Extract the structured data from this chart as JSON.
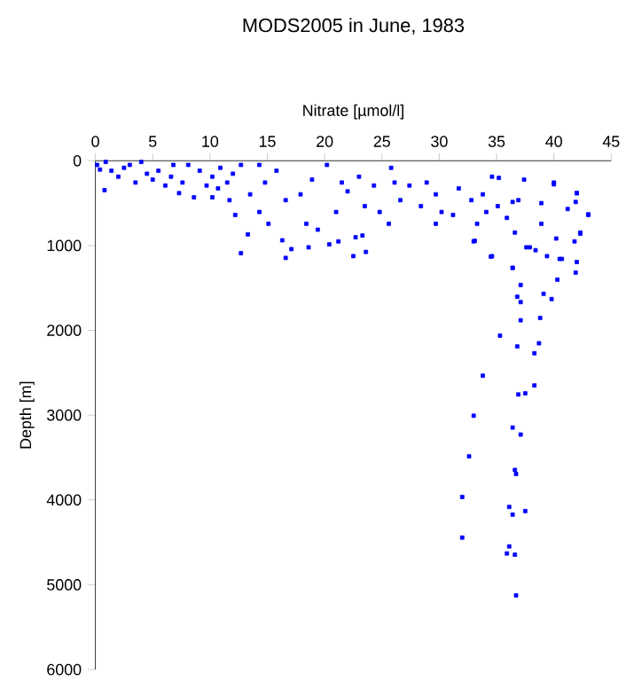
{
  "chart_data": {
    "type": "scatter",
    "title": "MODS2005 in June, 1983",
    "xlabel": "Nitrate [µmol/l]",
    "ylabel": "Depth [m]",
    "xlim": [
      0,
      45
    ],
    "ylim": [
      6000,
      0
    ],
    "xticks": [
      0,
      5,
      10,
      15,
      20,
      25,
      30,
      35,
      40,
      45
    ],
    "yticks": [
      0,
      1000,
      2000,
      3000,
      4000,
      5000,
      6000
    ],
    "marker": "square",
    "grid": false,
    "series": [
      {
        "color": "#0000ff",
        "x": [
          35.3,
          36.8,
          38.3,
          33.8,
          38.3,
          36.9,
          37.5,
          33.0,
          36.4,
          37.1,
          32.6,
          36.6,
          36.7,
          32.0,
          36.1,
          36.4,
          37.5,
          32.0,
          36.1,
          35.9,
          36.6,
          36.7,
          40.0,
          42.0,
          41.9,
          43.0,
          42.3,
          42.0,
          41.9,
          40.3,
          39.1,
          39.8,
          37.1,
          36.8,
          37.1,
          38.8,
          37.1,
          38.7,
          36.4,
          34.5,
          33.1,
          23.6,
          22.7,
          36.4,
          38.9,
          37.9,
          39.4,
          40.5,
          35.2,
          0.15,
          0.9,
          0.8,
          3.0,
          4.0,
          3.5,
          5.5,
          7.3,
          8.6,
          8.1,
          10.2,
          10.2,
          11.5,
          12.7,
          12.7,
          12.2,
          11.7,
          13.3,
          14.3,
          13.5,
          14.8,
          14.3,
          15.8,
          16.6,
          17.1,
          16.6,
          16.3,
          15.1,
          18.4,
          18.6,
          19.4,
          17.9,
          18.9,
          20.2,
          20.4,
          21.0,
          21.5,
          21.2,
          22.5,
          22.0,
          23.5,
          23.0,
          23.3,
          24.3,
          24.8,
          25.6,
          25.8,
          26.1,
          26.6,
          27.4,
          28.4,
          28.9,
          29.7,
          30.2,
          29.7,
          31.7,
          32.8,
          33.3,
          33.8,
          34.6,
          35.1,
          33.0,
          34.6,
          35.9,
          36.6,
          36.4,
          37.4,
          37.6,
          38.4,
          38.9,
          40.0,
          40.2,
          40.7,
          41.2,
          41.8,
          42.0,
          42.3,
          43.0,
          36.9,
          34.1,
          31.2,
          1.4,
          2.0,
          4.5,
          5.0,
          6.6,
          6.8,
          9.1,
          9.7,
          10.9,
          12.0,
          10.7,
          7.6,
          6.1,
          0.4,
          2.5
        ],
        "values": [
          2063,
          2190,
          2270,
          2535,
          2650,
          2756,
          2743,
          3007,
          3146,
          3229,
          3486,
          3646,
          3694,
          3965,
          4083,
          4173,
          4131,
          4444,
          4548,
          4631,
          4646,
          5125,
          278,
          382,
          486,
          632,
          861,
          1194,
          1319,
          1402,
          1569,
          1631,
          1465,
          1604,
          1667,
          1854,
          1881,
          2152,
          1263,
          1131,
          944,
          1075,
          902,
          486,
          500,
          1021,
          1125,
          1158,
          202,
          49,
          14,
          347,
          49,
          14,
          257,
          118,
          382,
          431,
          49,
          431,
          188,
          257,
          49,
          1090,
          639,
          465,
          868,
          604,
          396,
          257,
          49,
          118,
          465,
          1042,
          1146,
          938,
          743,
          743,
          1021,
          813,
          396,
          222,
          49,
          986,
          604,
          257,
          951,
          1125,
          361,
          535,
          188,
          882,
          292,
          604,
          743,
          83,
          257,
          465,
          292,
          535,
          257,
          396,
          604,
          743,
          326,
          465,
          743,
          396,
          188,
          535,
          951,
          1125,
          674,
          847,
          1263,
          222,
          1021,
          1055,
          743,
          257,
          917,
          1158,
          569,
          951,
          382,
          847,
          639,
          465,
          604,
          639,
          118,
          188,
          153,
          222,
          188,
          49,
          118,
          292,
          83,
          153,
          326,
          257,
          292,
          104,
          83
        ]
      }
    ]
  }
}
